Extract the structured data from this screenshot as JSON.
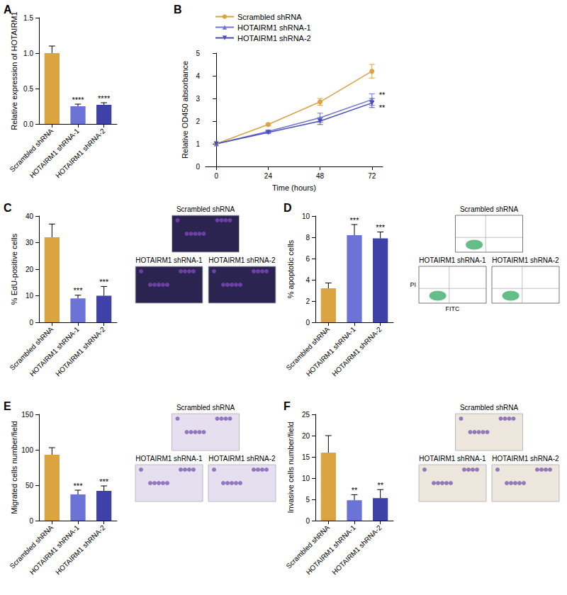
{
  "chart_data": [
    {
      "type": "bar",
      "title": "A",
      "categories": [
        "Scrambled shRNA",
        "HOTAIRM1 shRNA-1",
        "HOTAIRM1 shRNA-2"
      ],
      "values": [
        1.0,
        0.25,
        0.27
      ],
      "errors": [
        0.1,
        0.03,
        0.03
      ],
      "colors": [
        "#d9a441",
        "#6b73d6",
        "#3d41a8"
      ],
      "significance": [
        null,
        "****",
        "****"
      ],
      "ylabel": "Relative expression of HOTAIRM1",
      "ylim": [
        0,
        1.5
      ],
      "yticks": [
        {
          "value": 0,
          "label": "0.0"
        },
        {
          "value": 0.5,
          "label": "0.5"
        },
        {
          "value": 1,
          "label": "1.0"
        },
        {
          "value": 1.5,
          "label": "1.5"
        }
      ],
      "grid": false
    },
    {
      "type": "line",
      "title": "B",
      "x": [
        0,
        24,
        48,
        72
      ],
      "series": [
        {
          "name": "Scrambled shRNA",
          "color": "#d9a441",
          "marker": "circle",
          "values": [
            1,
            1.85,
            2.85,
            4.2
          ],
          "errors": [
            0,
            0.05,
            0.15,
            0.3
          ],
          "significance": [
            null,
            null,
            null,
            null
          ]
        },
        {
          "name": "HOTAIRM1 shRNA-1",
          "color": "#6f77d4",
          "marker": "triangle",
          "values": [
            1,
            1.55,
            2.15,
            2.95
          ],
          "errors": [
            0,
            0.05,
            0.2,
            0.25
          ],
          "significance": [
            null,
            null,
            null,
            "**"
          ]
        },
        {
          "name": "HOTAIRM1 shRNA-2",
          "color": "#4b4fb5",
          "marker": "triangle-down",
          "values": [
            1,
            1.5,
            2.0,
            2.8
          ],
          "errors": [
            0,
            0.05,
            0.15,
            0.2
          ],
          "significance": [
            null,
            null,
            null,
            "**"
          ]
        }
      ],
      "xlabel": "Time (hours)",
      "ylabel": "Relative OD450 absorbance",
      "xlim": [
        -5,
        77
      ],
      "xticks": [
        0,
        24,
        48,
        72
      ],
      "ylim": [
        0,
        5
      ],
      "yticks": [
        0,
        1,
        2,
        3,
        4,
        5
      ],
      "legend": "top-left",
      "grid": false
    },
    {
      "type": "bar",
      "title": "C",
      "categories": [
        "Scrambled shRNA",
        "HOTAIRM1 shRNA-1",
        "HOTAIRM1 shRNA-2"
      ],
      "values": [
        32,
        9,
        10
      ],
      "errors": [
        5,
        1.2,
        3.5
      ],
      "colors": [
        "#d9a441",
        "#6b73d6",
        "#3d41a8"
      ],
      "significance": [
        null,
        "***",
        "***"
      ],
      "ylabel": "% EdU-positive cells",
      "ylim": [
        0,
        40
      ],
      "yticks": [
        0,
        10,
        20,
        30,
        40
      ],
      "grid": false
    },
    {
      "type": "image",
      "labels": [
        "Scrambled shRNA",
        "HOTAIRM1 shRNA-1",
        "HOTAIRM1 shRNA-2"
      ]
    },
    {
      "type": "bar",
      "title": "D",
      "categories": [
        "Scrambled shRNA",
        "HOTAIRM1 shRNA-1",
        "HOTAIRM1 shRNA-2"
      ],
      "values": [
        3.2,
        8.2,
        7.9
      ],
      "errors": [
        0.5,
        1.0,
        0.6
      ],
      "colors": [
        "#d9a441",
        "#6b73d6",
        "#3d41a8"
      ],
      "significance": [
        null,
        "***",
        "***"
      ],
      "ylabel": "% apoptotic cells",
      "ylim": [
        0,
        10
      ],
      "yticks": [
        0,
        2,
        4,
        6,
        8,
        10
      ],
      "grid": false
    },
    {
      "type": "image",
      "labels": [
        "Scrambled shRNA",
        "HOTAIRM1 shRNA-1",
        "HOTAIRM1 shRNA-2"
      ],
      "xlabel": "FITC",
      "ylabel": "PI"
    },
    {
      "type": "bar",
      "title": "E",
      "categories": [
        "Scrambled shRNA",
        "HOTAIRM1 shRNA-1",
        "HOTAIRM1 shRNA-2"
      ],
      "values": [
        93,
        37,
        42
      ],
      "errors": [
        10,
        6,
        7
      ],
      "colors": [
        "#d9a441",
        "#6b73d6",
        "#3d41a8"
      ],
      "significance": [
        null,
        "***",
        "***"
      ],
      "ylabel": "Migrated cells number/field",
      "ylim": [
        0,
        150
      ],
      "yticks": [
        0,
        50,
        100,
        150
      ],
      "grid": false
    },
    {
      "type": "image",
      "labels": [
        "Scrambled shRNA",
        "HOTAIRM1 shRNA-1",
        "HOTAIRM1 shRNA-2"
      ]
    },
    {
      "type": "bar",
      "title": "F",
      "categories": [
        "Scrambled shRNA",
        "HOTAIRM1 shRNA-1",
        "HOTAIRM1 shRNA-2"
      ],
      "values": [
        16,
        4.8,
        5.3
      ],
      "errors": [
        4,
        1.3,
        2
      ],
      "colors": [
        "#d9a441",
        "#6b73d6",
        "#3d41a8"
      ],
      "significance": [
        null,
        "**",
        "**"
      ],
      "ylabel": "Invasive cells number/field",
      "ylim": [
        0,
        25
      ],
      "yticks": [
        0,
        5,
        10,
        15,
        20,
        25
      ],
      "grid": false
    },
    {
      "type": "image",
      "labels": [
        "Scrambled shRNA",
        "HOTAIRM1 shRNA-1",
        "HOTAIRM1 shRNA-2"
      ]
    }
  ]
}
